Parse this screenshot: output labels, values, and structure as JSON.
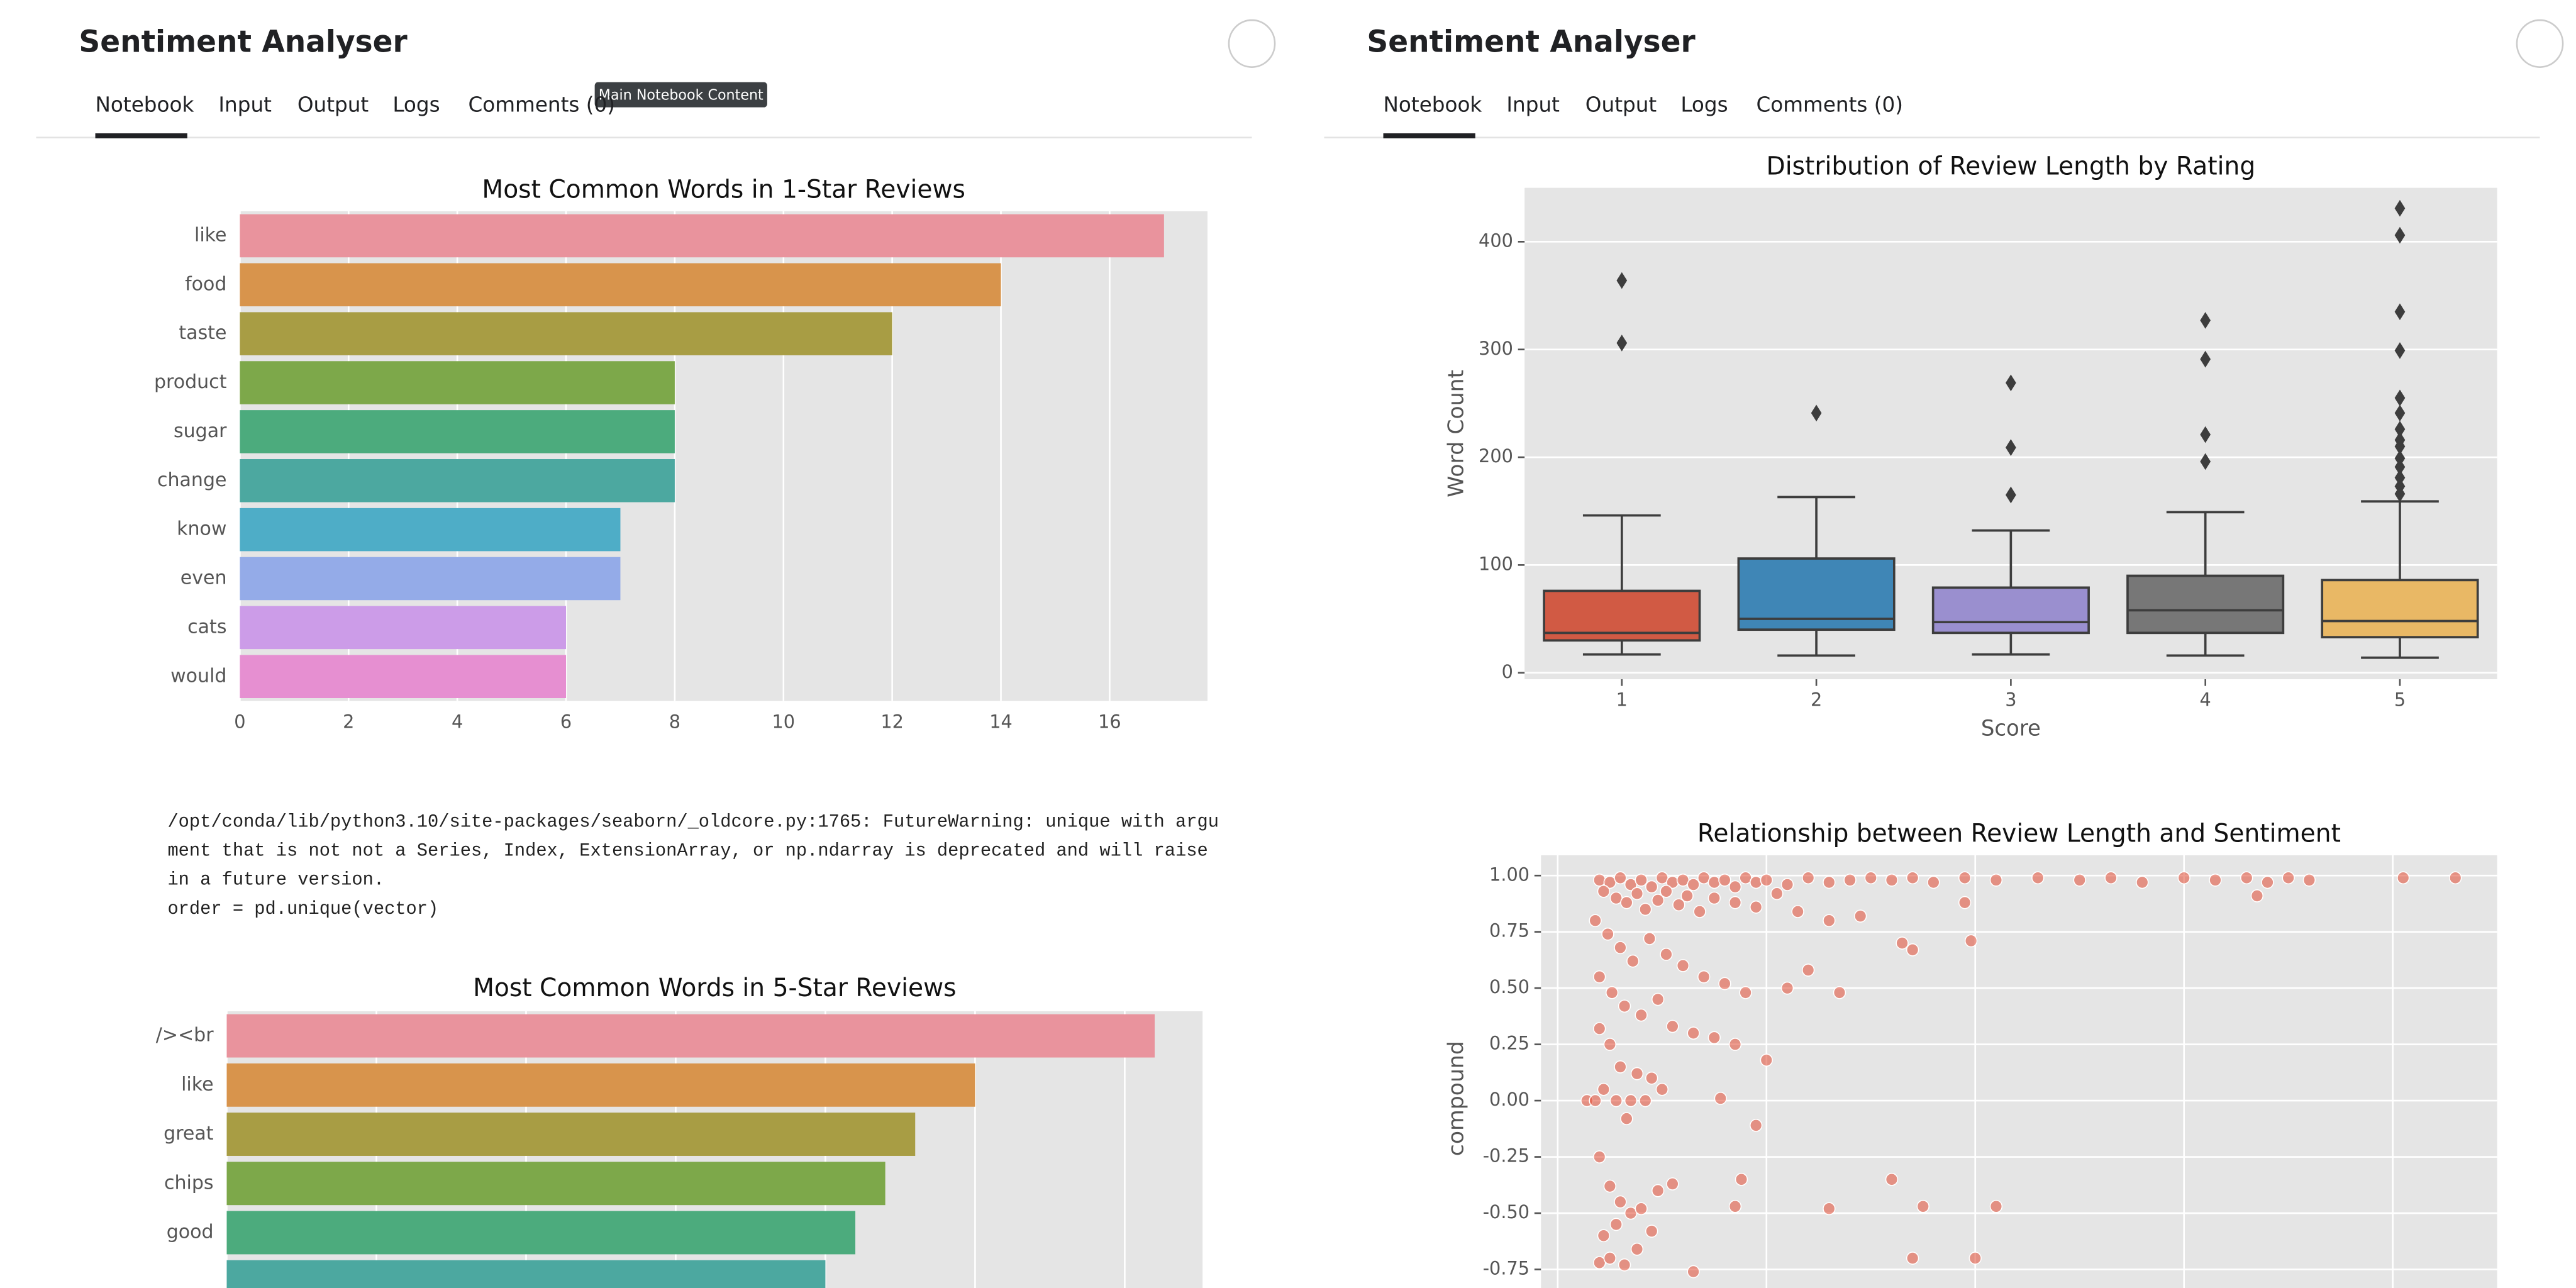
{
  "panels": [
    {
      "title": "Sentiment Analyser",
      "tabs": [
        "Notebook",
        "Input",
        "Output",
        "Logs",
        "Comments (0)"
      ]
    },
    {
      "title": "Sentiment Analyser",
      "tabs": [
        "Notebook",
        "Input",
        "Output",
        "Logs",
        "Comments (0)"
      ]
    }
  ],
  "tooltip": "Main Notebook Content",
  "warning": [
    "/opt/conda/lib/python3.10/site-packages/seaborn/_oldcore.py:1765: FutureWarning: unique with argu",
    "ment that is not not a Series, Index, ExtensionArray, or np.ndarray is deprecated and will raise",
    "in a future version.",
    "  order = pd.unique(vector)"
  ],
  "chart_data": [
    {
      "type": "hbar",
      "title": "Most Common Words in 1-Star Reviews",
      "categories": [
        "like",
        "food",
        "taste",
        "product",
        "sugar",
        "change",
        "know",
        "even",
        "cats",
        "would"
      ],
      "values": [
        17,
        14,
        12,
        8,
        8,
        8,
        7,
        7,
        6,
        6
      ],
      "colors": [
        "#e9939d",
        "#d8944c",
        "#a89d44",
        "#7da84a",
        "#4cab7d",
        "#4ca8a0",
        "#4eadc7",
        "#94abe8",
        "#cc9ce8",
        "#e68fd1"
      ],
      "xlim": [
        0,
        17.8
      ],
      "xticks": [
        0,
        2,
        4,
        6,
        8,
        10,
        12,
        14,
        16
      ],
      "grid": true
    },
    {
      "type": "hbar",
      "title": "Most Common Words in 5-Star Reviews",
      "categories": [
        "/><br",
        "like",
        "great",
        "chips",
        "good",
        null
      ],
      "values": [
        31,
        25,
        23,
        22,
        21,
        20
      ],
      "colors": [
        "#e9939d",
        "#d8944c",
        "#a89d44",
        "#7da84a",
        "#4cab7d",
        "#4ca8a0"
      ],
      "xlim": [
        0,
        32.6
      ],
      "xticks": [
        0,
        5,
        10,
        15,
        20,
        25,
        30
      ],
      "grid": true
    },
    {
      "type": "box",
      "title": "Distribution of Review Length by Rating",
      "xlabel": "Score",
      "ylabel": "Word Count",
      "categories": [
        "1",
        "2",
        "3",
        "4",
        "5"
      ],
      "boxes": [
        {
          "color": "#d15a44",
          "whislo": 17,
          "q1": 30,
          "med": 37,
          "q3": 76,
          "whishi": 146,
          "fliers": [
            364,
            306
          ]
        },
        {
          "color": "#3f86b6",
          "whislo": 16,
          "q1": 40,
          "med": 50,
          "q3": 106,
          "whishi": 163,
          "fliers": [
            241
          ]
        },
        {
          "color": "#9a8fcf",
          "whislo": 17,
          "q1": 37,
          "med": 47,
          "q3": 79,
          "whishi": 132,
          "fliers": [
            269,
            209,
            165
          ]
        },
        {
          "color": "#777777",
          "whislo": 16,
          "q1": 37,
          "med": 58,
          "q3": 90,
          "whishi": 149,
          "fliers": [
            327,
            291,
            221,
            196
          ]
        },
        {
          "color": "#e9b865",
          "whislo": 14,
          "q1": 33,
          "med": 48,
          "q3": 86,
          "whishi": 159,
          "fliers": [
            431,
            406,
            335,
            299,
            255,
            241,
            226,
            216,
            210,
            199,
            191,
            181,
            173,
            166
          ]
        }
      ],
      "ylim": [
        -6,
        450
      ],
      "yticks": [
        0,
        100,
        200,
        300,
        400
      ],
      "grid": true
    },
    {
      "type": "scatter",
      "title": "Relationship between Review Length and Sentiment",
      "ylabel": "compound",
      "color": "#e24a33",
      "x": [
        20,
        25,
        30,
        35,
        40,
        45,
        50,
        55,
        60,
        65,
        70,
        75,
        80,
        85,
        90,
        95,
        100,
        110,
        120,
        130,
        140,
        150,
        160,
        170,
        180,
        195,
        210,
        230,
        250,
        265,
        280,
        300,
        315,
        330,
        335,
        340,
        350,
        360,
        405,
        430,
        22,
        28,
        33,
        38,
        42,
        48,
        52,
        58,
        62,
        68,
        75,
        85,
        95,
        105,
        115,
        130,
        145,
        195,
        198,
        18,
        24,
        30,
        36,
        44,
        52,
        60,
        70,
        80,
        90,
        110,
        120,
        135,
        165,
        170,
        20,
        26,
        32,
        40,
        48,
        55,
        65,
        75,
        85,
        100,
        20,
        25,
        30,
        38,
        45,
        22,
        28,
        35,
        42,
        14,
        18,
        50,
        78,
        95,
        33,
        20,
        25,
        30,
        35,
        28,
        22,
        40,
        48,
        55,
        85,
        88,
        130,
        160,
        175,
        210,
        20,
        25,
        32,
        38,
        45,
        65,
        170,
        200
      ],
      "y": [
        0.98,
        0.97,
        0.99,
        0.96,
        0.98,
        0.95,
        0.99,
        0.97,
        0.98,
        0.96,
        0.99,
        0.97,
        0.98,
        0.95,
        0.99,
        0.97,
        0.98,
        0.96,
        0.99,
        0.97,
        0.98,
        0.99,
        0.98,
        0.99,
        0.97,
        0.99,
        0.98,
        0.99,
        0.98,
        0.99,
        0.97,
        0.99,
        0.98,
        0.99,
        0.91,
        0.97,
        0.99,
        0.98,
        0.99,
        0.99,
        0.93,
        0.9,
        0.88,
        0.92,
        0.85,
        0.89,
        0.93,
        0.87,
        0.91,
        0.84,
        0.9,
        0.88,
        0.86,
        0.92,
        0.84,
        0.8,
        0.82,
        0.88,
        0.71,
        0.8,
        0.74,
        0.68,
        0.62,
        0.72,
        0.65,
        0.6,
        0.55,
        0.52,
        0.48,
        0.5,
        0.58,
        0.48,
        0.7,
        0.67,
        0.55,
        0.48,
        0.42,
        0.38,
        0.45,
        0.33,
        0.3,
        0.28,
        0.25,
        0.18,
        0.32,
        0.25,
        0.15,
        0.12,
        0.1,
        0.05,
        0,
        0,
        0,
        0,
        0,
        0.05,
        0.01,
        -0.11,
        -0.08,
        -0.25,
        -0.38,
        -0.45,
        -0.5,
        -0.55,
        -0.6,
        -0.48,
        -0.4,
        -0.37,
        -0.47,
        -0.35,
        -0.48,
        -0.35,
        -0.47,
        -0.47,
        -0.72,
        -0.7,
        -0.73,
        -0.66,
        -0.58,
        -0.76,
        -0.7,
        -0.7
      ],
      "xlim": [
        -8,
        450
      ],
      "xticks": [
        0,
        100,
        200,
        300,
        400
      ],
      "ylim": [
        -0.84,
        1.09
      ],
      "yticks": [
        -0.75,
        {
          "value": -0.5,
          "label": "-0.50"
        },
        -0.25,
        {
          "value": 0,
          "label": "0.00"
        },
        0.25,
        {
          "value": 0.5,
          "label": "0.50"
        },
        0.75,
        {
          "value": 1,
          "label": "1.00"
        }
      ],
      "grid": true
    }
  ]
}
